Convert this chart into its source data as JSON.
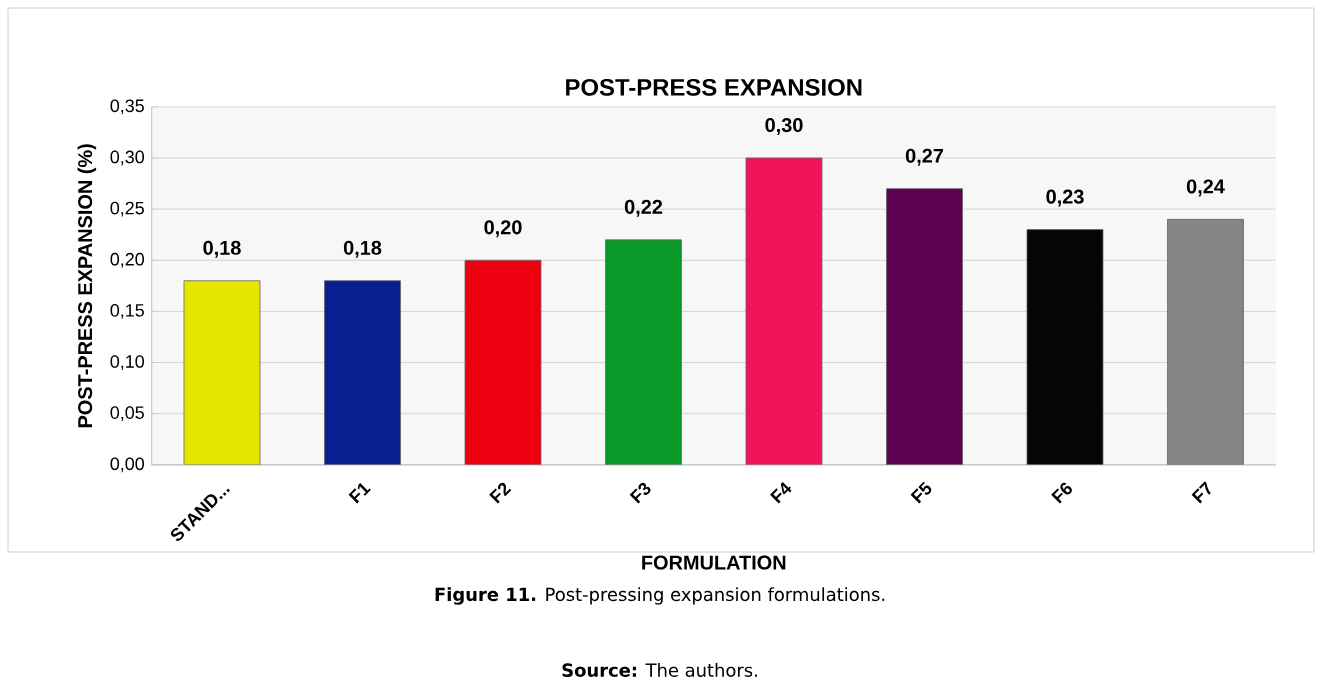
{
  "chart_data": {
    "type": "bar",
    "title": "POST-PRESS EXPANSION",
    "xlabel": "FORMULATION",
    "ylabel": "POST-PRESS EXPANSION (%)",
    "categories": [
      "STAND...",
      "F1",
      "F2",
      "F3",
      "F4",
      "F5",
      "F6",
      "F7"
    ],
    "values": [
      0.18,
      0.18,
      0.2,
      0.22,
      0.3,
      0.27,
      0.23,
      0.24
    ],
    "colors": [
      "#e6e600",
      "#0a1f8f",
      "#ee0010",
      "#0a9a2a",
      "#f0145a",
      "#5e0050",
      "#050505",
      "#858585"
    ],
    "value_labels": [
      "0,18",
      "0,18",
      "0,20",
      "0,22",
      "0,30",
      "0,27",
      "0,23",
      "0,24"
    ],
    "ylim": [
      0,
      0.35
    ],
    "yticks": [
      {
        "value": 0,
        "label": "0,00"
      },
      {
        "value": 0.05,
        "label": "0,05"
      },
      {
        "value": 0.1,
        "label": "0,10"
      },
      {
        "value": 0.15,
        "label": "0,15"
      },
      {
        "value": 0.2,
        "label": "0,20"
      },
      {
        "value": 0.25,
        "label": "0,25"
      },
      {
        "value": 0.3,
        "label": "0,30"
      },
      {
        "value": 0.35,
        "label": "0,35"
      }
    ],
    "grid": "y",
    "annotations": [
      "**Figure 11.** Post-pressing expansion formulations.",
      "**Source:** The authors."
    ]
  }
}
